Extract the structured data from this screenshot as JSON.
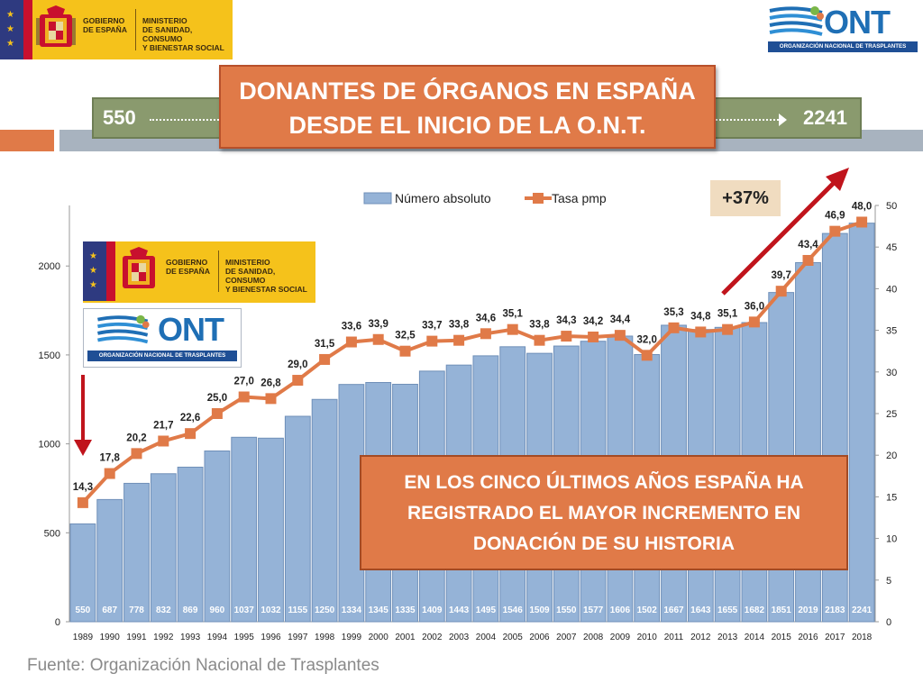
{
  "header": {
    "gov_line1": "GOBIERNO",
    "gov_line2": "DE ESPAÑA",
    "ministry_line1": "MINISTERIO",
    "ministry_line2": "DE SANIDAD, CONSUMO",
    "ministry_line3": "Y BIENESTAR SOCIAL",
    "ont_word": "ONT",
    "ont_full": "ORGANIZACIÓN NACIONAL DE TRASPLANTES"
  },
  "band": {
    "start": "550",
    "end": "2241"
  },
  "title": {
    "line1": "DONANTES DE ÓRGANOS EN ESPAÑA",
    "line2": "DESDE EL INICIO DE LA O.N.T."
  },
  "increase_label": "+37%",
  "callout": {
    "line1": "EN LOS CINCO ÚLTIMOS AÑOS ESPAÑA HA",
    "line2": "REGISTRADO EL MAYOR INCREMENTO EN",
    "line3": "DONACIÓN DE SU HISTORIA"
  },
  "source": "Fuente: Organización Nacional de Trasplantes",
  "colors": {
    "bar": "#95b3d7",
    "bar_stroke": "#6f8fb8",
    "line": "#e07a48",
    "orange_box": "#e07a48",
    "arrow": "#c0141c"
  },
  "chart_data": {
    "type": "bar",
    "categories": [
      "1989",
      "1990",
      "1991",
      "1992",
      "1993",
      "1994",
      "1995",
      "1996",
      "1997",
      "1998",
      "1999",
      "2000",
      "2001",
      "2002",
      "2003",
      "2004",
      "2005",
      "2006",
      "2007",
      "2008",
      "2009",
      "2010",
      "2011",
      "2012",
      "2013",
      "2014",
      "2015",
      "2016",
      "2017",
      "2018"
    ],
    "series": [
      {
        "name": "Número absoluto",
        "type": "bar",
        "axis": "left",
        "values": [
          550,
          687,
          778,
          832,
          869,
          960,
          1037,
          1032,
          1155,
          1250,
          1334,
          1345,
          1335,
          1409,
          1443,
          1495,
          1546,
          1509,
          1550,
          1577,
          1606,
          1502,
          1667,
          1643,
          1655,
          1682,
          1851,
          2019,
          2183,
          2241
        ],
        "labels": [
          "550",
          "687",
          "778",
          "832",
          "869",
          "960",
          "1037",
          "1032",
          "1155",
          "1250",
          "1334",
          "1345",
          "1335",
          "1409",
          "1443",
          "1495",
          "1546",
          "1509",
          "1550",
          "1577",
          "1606",
          "1502",
          "1667",
          "1643",
          "1655",
          "1682",
          "1851",
          "2019",
          "2183",
          "2241"
        ]
      },
      {
        "name": "Tasa pmp",
        "type": "line",
        "axis": "right",
        "values": [
          14.3,
          17.8,
          20.2,
          21.7,
          22.6,
          25.0,
          27.0,
          26.8,
          29.0,
          31.5,
          33.6,
          33.9,
          32.5,
          33.7,
          33.8,
          34.6,
          35.1,
          33.8,
          34.3,
          34.2,
          34.4,
          32.0,
          35.3,
          34.8,
          35.1,
          36.0,
          39.7,
          43.4,
          46.9,
          48.0
        ],
        "labels": [
          "14,3",
          "17,8",
          "20,2",
          "21,7",
          "22,6",
          "25,0",
          "27,0",
          "26,8",
          "29,0",
          "31,5",
          "33,6",
          "33,9",
          "32,5",
          "33,7",
          "33,8",
          "34,6",
          "35,1",
          "33,8",
          "34,3",
          "34,2",
          "34,4",
          "32,0",
          "35,3",
          "34,8",
          "35,1",
          "36,0",
          "39,7",
          "43,4",
          "46,9",
          "48,0"
        ]
      }
    ],
    "y_left": {
      "min": 0,
      "max": 2300,
      "ticks": [
        "0",
        "500",
        "1000",
        "1500",
        "2000"
      ],
      "tick_values": [
        0,
        500,
        1000,
        1500,
        2000
      ]
    },
    "y_right": {
      "min": 0,
      "max": 50,
      "ticks": [
        "0",
        "5",
        "10",
        "15",
        "20",
        "25",
        "30",
        "35",
        "40",
        "45",
        "50"
      ],
      "tick_values": [
        0,
        5,
        10,
        15,
        20,
        25,
        30,
        35,
        40,
        45,
        50
      ]
    },
    "legend_position": "top-center",
    "grid": false
  }
}
